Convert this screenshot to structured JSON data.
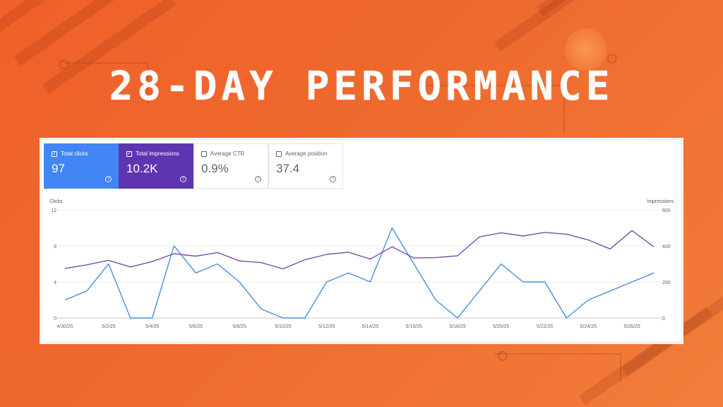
{
  "headline": "28-DAY PERFORMANCE",
  "metrics": [
    {
      "label": "Total clicks",
      "value": "97",
      "checked": true,
      "color": "#4285f4"
    },
    {
      "label": "Total impressions",
      "value": "10.2K",
      "checked": true,
      "color": "#5e35b1"
    },
    {
      "label": "Average CTR",
      "value": "0.9%",
      "checked": false
    },
    {
      "label": "Average position",
      "value": "37.4",
      "checked": false
    }
  ],
  "chart_data": {
    "type": "line",
    "ylabel_left": "Clicks",
    "ylabel_right": "Impressions",
    "y_left_ticks": [
      "12",
      "8",
      "4",
      "0"
    ],
    "y_right_ticks": [
      "600",
      "400",
      "200",
      "0"
    ],
    "ylim_left": [
      0,
      12
    ],
    "ylim_right": [
      0,
      600
    ],
    "x_tick_labels": [
      "4/30/25",
      "5/2/25",
      "5/4/25",
      "5/6/25",
      "5/8/25",
      "5/10/25",
      "5/12/25",
      "5/14/25",
      "5/16/25",
      "5/18/25",
      "5/20/25",
      "5/22/25",
      "5/24/25",
      "5/26/25"
    ],
    "x": [
      "4/30/25",
      "5/1/25",
      "5/2/25",
      "5/3/25",
      "5/4/25",
      "5/5/25",
      "5/6/25",
      "5/7/25",
      "5/8/25",
      "5/9/25",
      "5/10/25",
      "5/11/25",
      "5/12/25",
      "5/13/25",
      "5/14/25",
      "5/15/25",
      "5/16/25",
      "5/17/25",
      "5/18/25",
      "5/19/25",
      "5/20/25",
      "5/21/25",
      "5/22/25",
      "5/23/25",
      "5/24/25",
      "5/25/25",
      "5/26/25",
      "5/27/25"
    ],
    "series": [
      {
        "name": "Clicks",
        "axis": "left",
        "color": "#4a90d9",
        "values": [
          2,
          3,
          6,
          0,
          0,
          8,
          5,
          6,
          4,
          1,
          0,
          0,
          4,
          5,
          4,
          10,
          6,
          2,
          0,
          3,
          6,
          4,
          4,
          0,
          2,
          3,
          4,
          5
        ]
      },
      {
        "name": "Impressions",
        "axis": "right",
        "color": "#7b4fa8",
        "values": [
          275,
          295,
          320,
          283,
          313,
          357,
          343,
          363,
          317,
          307,
          273,
          323,
          353,
          365,
          327,
          395,
          333,
          335,
          345,
          450,
          473,
          455,
          475,
          465,
          433,
          383,
          485,
          395
        ]
      }
    ],
    "grid": true
  }
}
